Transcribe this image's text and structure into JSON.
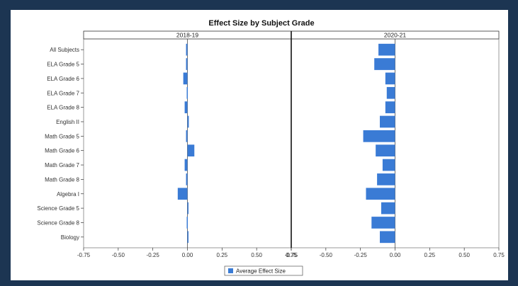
{
  "chart_data": {
    "type": "bar",
    "orientation": "horizontal",
    "title": "Effect Size by Subject Grade",
    "categories": [
      "All Subjects",
      "ELA Grade 5",
      "ELA Grade 6",
      "ELA Grade 7",
      "ELA Grade 8",
      "English II",
      "Math Grade 5",
      "Math Grade 6",
      "Math Grade 7",
      "Math Grade 8",
      "Algebra I",
      "Science Grade 5",
      "Science Grade 8",
      "Biology"
    ],
    "facets": [
      {
        "name": "2018-19",
        "values": [
          -0.01,
          -0.01,
          -0.03,
          -0.005,
          -0.02,
          0.01,
          -0.01,
          0.05,
          -0.02,
          -0.01,
          -0.07,
          0.0,
          -0.005,
          0.0
        ]
      },
      {
        "name": "2020-21",
        "values": [
          -0.12,
          -0.15,
          -0.07,
          -0.06,
          -0.07,
          -0.11,
          -0.23,
          -0.14,
          -0.09,
          -0.13,
          -0.21,
          -0.1,
          -0.17,
          -0.11
        ]
      }
    ],
    "xlim": [
      -0.75,
      0.75
    ],
    "xticks": [
      "-0.75",
      "-0.50",
      "-0.25",
      "0.00",
      "0.25",
      "0.50",
      "0.75"
    ],
    "legend": {
      "label": "Average Effect Size",
      "placement": "bottom-center"
    },
    "bar_color": "#3a7bd5",
    "reference_line": 0
  }
}
